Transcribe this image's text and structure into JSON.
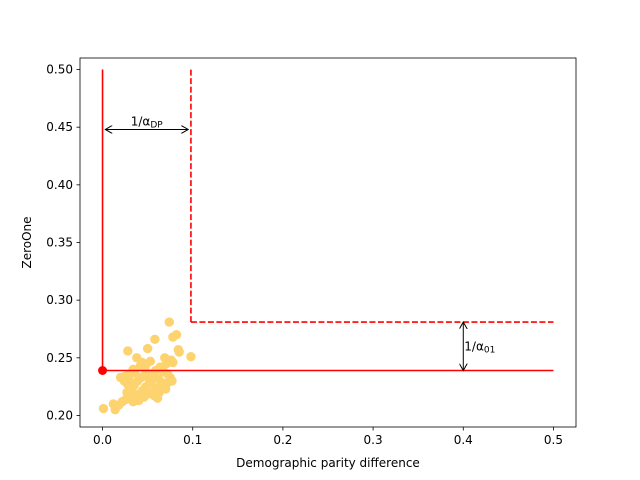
{
  "chart_data": {
    "type": "scatter",
    "title": "",
    "xlabel": "Demographic parity difference",
    "ylabel": "ZeroOne",
    "xlim": [
      -0.025,
      0.525
    ],
    "ylim": [
      0.19,
      0.51
    ],
    "xticks": [
      0.0,
      0.1,
      0.2,
      0.3,
      0.4,
      0.5
    ],
    "xtick_labels": [
      "0.0",
      "0.1",
      "0.2",
      "0.3",
      "0.4",
      "0.5"
    ],
    "yticks": [
      0.2,
      0.25,
      0.3,
      0.35,
      0.4,
      0.45,
      0.5
    ],
    "ytick_labels": [
      "0.20",
      "0.25",
      "0.30",
      "0.35",
      "0.40",
      "0.45",
      "0.50"
    ],
    "grid": false,
    "scatter_color": "#fdd36f",
    "highlight_color": "#ff0000",
    "scatter_points": [
      [
        0.001,
        0.206
      ],
      [
        0.014,
        0.205
      ],
      [
        0.018,
        0.209
      ],
      [
        0.012,
        0.21
      ],
      [
        0.022,
        0.212
      ],
      [
        0.024,
        0.23
      ],
      [
        0.028,
        0.227
      ],
      [
        0.032,
        0.223
      ],
      [
        0.027,
        0.22
      ],
      [
        0.033,
        0.215
      ],
      [
        0.037,
        0.217
      ],
      [
        0.041,
        0.219
      ],
      [
        0.035,
        0.226
      ],
      [
        0.039,
        0.23
      ],
      [
        0.043,
        0.233
      ],
      [
        0.03,
        0.236
      ],
      [
        0.036,
        0.237
      ],
      [
        0.031,
        0.218
      ],
      [
        0.045,
        0.222
      ],
      [
        0.048,
        0.225
      ],
      [
        0.052,
        0.228
      ],
      [
        0.055,
        0.231
      ],
      [
        0.049,
        0.234
      ],
      [
        0.046,
        0.216
      ],
      [
        0.051,
        0.219
      ],
      [
        0.057,
        0.221
      ],
      [
        0.06,
        0.224
      ],
      [
        0.058,
        0.217
      ],
      [
        0.054,
        0.236
      ],
      [
        0.062,
        0.232
      ],
      [
        0.065,
        0.229
      ],
      [
        0.067,
        0.226
      ],
      [
        0.07,
        0.223
      ],
      [
        0.073,
        0.229
      ],
      [
        0.075,
        0.233
      ],
      [
        0.068,
        0.238
      ],
      [
        0.064,
        0.242
      ],
      [
        0.071,
        0.245
      ],
      [
        0.069,
        0.25
      ],
      [
        0.076,
        0.248
      ],
      [
        0.078,
        0.246
      ],
      [
        0.077,
        0.23
      ],
      [
        0.063,
        0.22
      ],
      [
        0.047,
        0.24
      ],
      [
        0.042,
        0.243
      ],
      [
        0.038,
        0.25
      ],
      [
        0.044,
        0.246
      ],
      [
        0.053,
        0.247
      ],
      [
        0.05,
        0.258
      ],
      [
        0.028,
        0.256
      ],
      [
        0.058,
        0.266
      ],
      [
        0.078,
        0.268
      ],
      [
        0.082,
        0.27
      ],
      [
        0.085,
        0.255
      ],
      [
        0.084,
        0.257
      ],
      [
        0.074,
        0.281
      ],
      [
        0.098,
        0.251
      ],
      [
        0.026,
        0.214
      ],
      [
        0.034,
        0.212
      ],
      [
        0.04,
        0.213
      ],
      [
        0.061,
        0.215
      ],
      [
        0.056,
        0.218
      ],
      [
        0.066,
        0.241
      ],
      [
        0.072,
        0.236
      ],
      [
        0.059,
        0.239
      ],
      [
        0.029,
        0.232
      ],
      [
        0.02,
        0.233
      ],
      [
        0.025,
        0.234
      ],
      [
        0.034,
        0.24
      ],
      [
        0.048,
        0.244
      ]
    ],
    "highlight_point": [
      0.0,
      0.239
    ],
    "solid_vertical": {
      "x": 0.0,
      "y_range": [
        0.239,
        0.5
      ]
    },
    "solid_horizontal": {
      "y": 0.239,
      "x_range": [
        0.0,
        0.5
      ]
    },
    "dashed_vertical": {
      "x": 0.098,
      "y_range": [
        0.281,
        0.5
      ]
    },
    "dashed_horizontal": {
      "y": 0.281,
      "x_range": [
        0.098,
        0.5
      ]
    },
    "arrow_dp": {
      "y": 0.448,
      "x_range": [
        0.003,
        0.095
      ],
      "label": "1/α_DP"
    },
    "arrow_01": {
      "x": 0.4,
      "y_range": [
        0.239,
        0.281
      ],
      "label": "1/α_01"
    }
  }
}
